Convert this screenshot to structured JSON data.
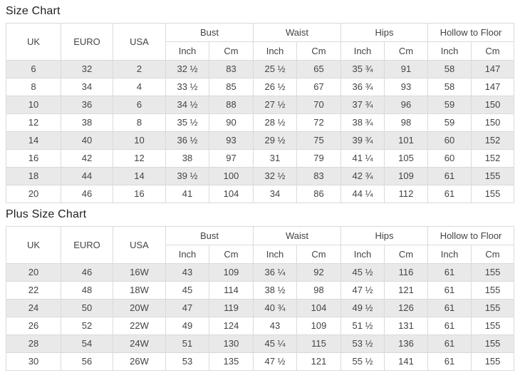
{
  "colors": {
    "row_stripe": "#e9e9e9",
    "table_border": "#dadada",
    "text": "#444444",
    "title_text": "#1f1f1f"
  },
  "tables": [
    {
      "title": "Size Chart",
      "simple_headers": [
        "UK",
        "EURO",
        "USA"
      ],
      "group_headers": [
        "Bust",
        "Waist",
        "Hips",
        "Hollow to Floor"
      ],
      "sub_headers": [
        "Inch",
        "Cm",
        "Inch",
        "Cm",
        "Inch",
        "Cm",
        "Inch",
        "Cm"
      ],
      "rows": [
        [
          "6",
          "32",
          "2",
          "32 ½",
          "83",
          "25 ½",
          "65",
          "35 ¾",
          "91",
          "58",
          "147"
        ],
        [
          "8",
          "34",
          "4",
          "33 ½",
          "85",
          "26 ½",
          "67",
          "36 ¾",
          "93",
          "58",
          "147"
        ],
        [
          "10",
          "36",
          "6",
          "34 ½",
          "88",
          "27 ½",
          "70",
          "37 ¾",
          "96",
          "59",
          "150"
        ],
        [
          "12",
          "38",
          "8",
          "35 ½",
          "90",
          "28 ½",
          "72",
          "38 ¾",
          "98",
          "59",
          "150"
        ],
        [
          "14",
          "40",
          "10",
          "36 ½",
          "93",
          "29 ½",
          "75",
          "39 ¾",
          "101",
          "60",
          "152"
        ],
        [
          "16",
          "42",
          "12",
          "38",
          "97",
          "31",
          "79",
          "41 ¼",
          "105",
          "60",
          "152"
        ],
        [
          "18",
          "44",
          "14",
          "39 ½",
          "100",
          "32 ½",
          "83",
          "42 ¾",
          "109",
          "61",
          "155"
        ],
        [
          "20",
          "46",
          "16",
          "41",
          "104",
          "34",
          "86",
          "44 ¼",
          "112",
          "61",
          "155"
        ]
      ]
    },
    {
      "title": "Plus Size Chart",
      "simple_headers": [
        "UK",
        "EURO",
        "USA"
      ],
      "group_headers": [
        "Bust",
        "Waist",
        "Hips",
        "Hollow to Floor"
      ],
      "sub_headers": [
        "Inch",
        "Cm",
        "Inch",
        "Cm",
        "Inch",
        "Cm",
        "Inch",
        "Cm"
      ],
      "rows": [
        [
          "20",
          "46",
          "16W",
          "43",
          "109",
          "36 ¼",
          "92",
          "45 ½",
          "116",
          "61",
          "155"
        ],
        [
          "22",
          "48",
          "18W",
          "45",
          "114",
          "38 ½",
          "98",
          "47 ½",
          "121",
          "61",
          "155"
        ],
        [
          "24",
          "50",
          "20W",
          "47",
          "119",
          "40 ¾",
          "104",
          "49 ½",
          "126",
          "61",
          "155"
        ],
        [
          "26",
          "52",
          "22W",
          "49",
          "124",
          "43",
          "109",
          "51 ½",
          "131",
          "61",
          "155"
        ],
        [
          "28",
          "54",
          "24W",
          "51",
          "130",
          "45 ¼",
          "115",
          "53 ½",
          "136",
          "61",
          "155"
        ],
        [
          "30",
          "56",
          "26W",
          "53",
          "135",
          "47 ½",
          "121",
          "55 ½",
          "141",
          "61",
          "155"
        ]
      ]
    }
  ]
}
